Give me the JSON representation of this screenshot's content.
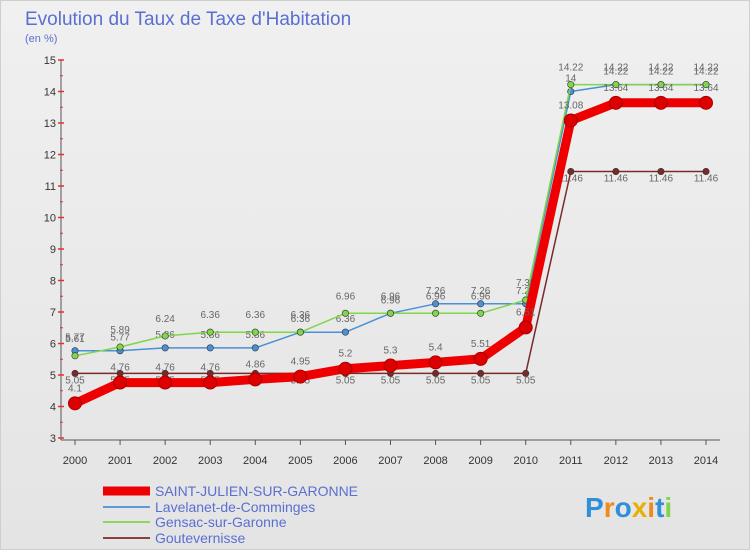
{
  "chart_data": {
    "type": "line",
    "title": "Evolution du Taux de Taxe d'Habitation",
    "subtitle": "(en %)",
    "x": [
      "2000",
      "2001",
      "2002",
      "2003",
      "2004",
      "2005",
      "2006",
      "2007",
      "2008",
      "2009",
      "2010",
      "2011",
      "2012",
      "2013",
      "2014"
    ],
    "ylim": [
      3,
      15
    ],
    "yticks": [
      3,
      4,
      5,
      6,
      7,
      8,
      9,
      10,
      11,
      12,
      13,
      14,
      15
    ],
    "grid": false,
    "legend_position": "bottom-left",
    "series": [
      {
        "name": "SAINT-JULIEN-SUR-GARONNE",
        "color": "#ee0000",
        "values": [
          4.1,
          4.76,
          4.76,
          4.76,
          4.86,
          4.95,
          5.2,
          5.3,
          5.4,
          5.51,
          6.51,
          13.08,
          13.64,
          13.64,
          13.64
        ],
        "labels": [
          "4.1",
          "4.76",
          "4.76",
          "4.76",
          "4.86",
          "4.95",
          "5.2",
          "5.3",
          "5.4",
          "5.51",
          "6.51",
          "13.08",
          "13.64",
          "13.64",
          "13.64"
        ]
      },
      {
        "name": "Lavelanet-de-Comminges",
        "color": "#4a8fd8",
        "values": [
          5.77,
          5.77,
          5.86,
          5.86,
          5.86,
          6.36,
          6.36,
          6.96,
          7.26,
          7.26,
          7.26,
          14.0,
          14.22,
          14.22,
          14.22
        ],
        "labels": [
          "5.77",
          "5.77",
          "5.86",
          "5.86",
          "5.86",
          "6.36",
          "6.36",
          "6.96",
          "7.26",
          "7.26",
          "7.26",
          "14",
          "14.22",
          "14.22",
          "14.22"
        ]
      },
      {
        "name": "Gensac-sur-Garonne",
        "color": "#7fd64a",
        "values": [
          5.61,
          5.89,
          6.24,
          6.36,
          6.36,
          6.36,
          6.96,
          6.96,
          6.96,
          6.96,
          7.38,
          14.22,
          14.22,
          14.22,
          14.22
        ],
        "labels": [
          "5.61",
          "5.89",
          "6.24",
          "6.36",
          "6.36",
          "6.36",
          "6.96",
          "6.96",
          "6.96",
          "6.96",
          "7.38",
          "14.22",
          "14.22",
          "14.22",
          "14.22"
        ]
      },
      {
        "name": "Goutevernisse",
        "color": "#7a2a2a",
        "values": [
          5.05,
          5.05,
          5.05,
          5.05,
          5.05,
          5.05,
          5.05,
          5.05,
          5.05,
          5.05,
          5.05,
          11.46,
          11.46,
          11.46,
          11.46
        ],
        "labels": [
          "5.05",
          "5.05",
          "5.05",
          "5.05",
          "5.05",
          "5.05",
          "5.05",
          "5.05",
          "5.05",
          "5.05",
          "5.05",
          "11.46",
          "11.46",
          "11.46",
          "11.46"
        ]
      }
    ]
  },
  "logo": {
    "text": "Proxiti",
    "letters": [
      "P",
      "r",
      "o",
      "x",
      "i",
      "t",
      "i"
    ],
    "colors": [
      "#2f8fd8",
      "#f08a1c",
      "#2f8fd8",
      "#e8b000",
      "#f08a1c",
      "#2f8fd8",
      "#7fd64a"
    ]
  }
}
